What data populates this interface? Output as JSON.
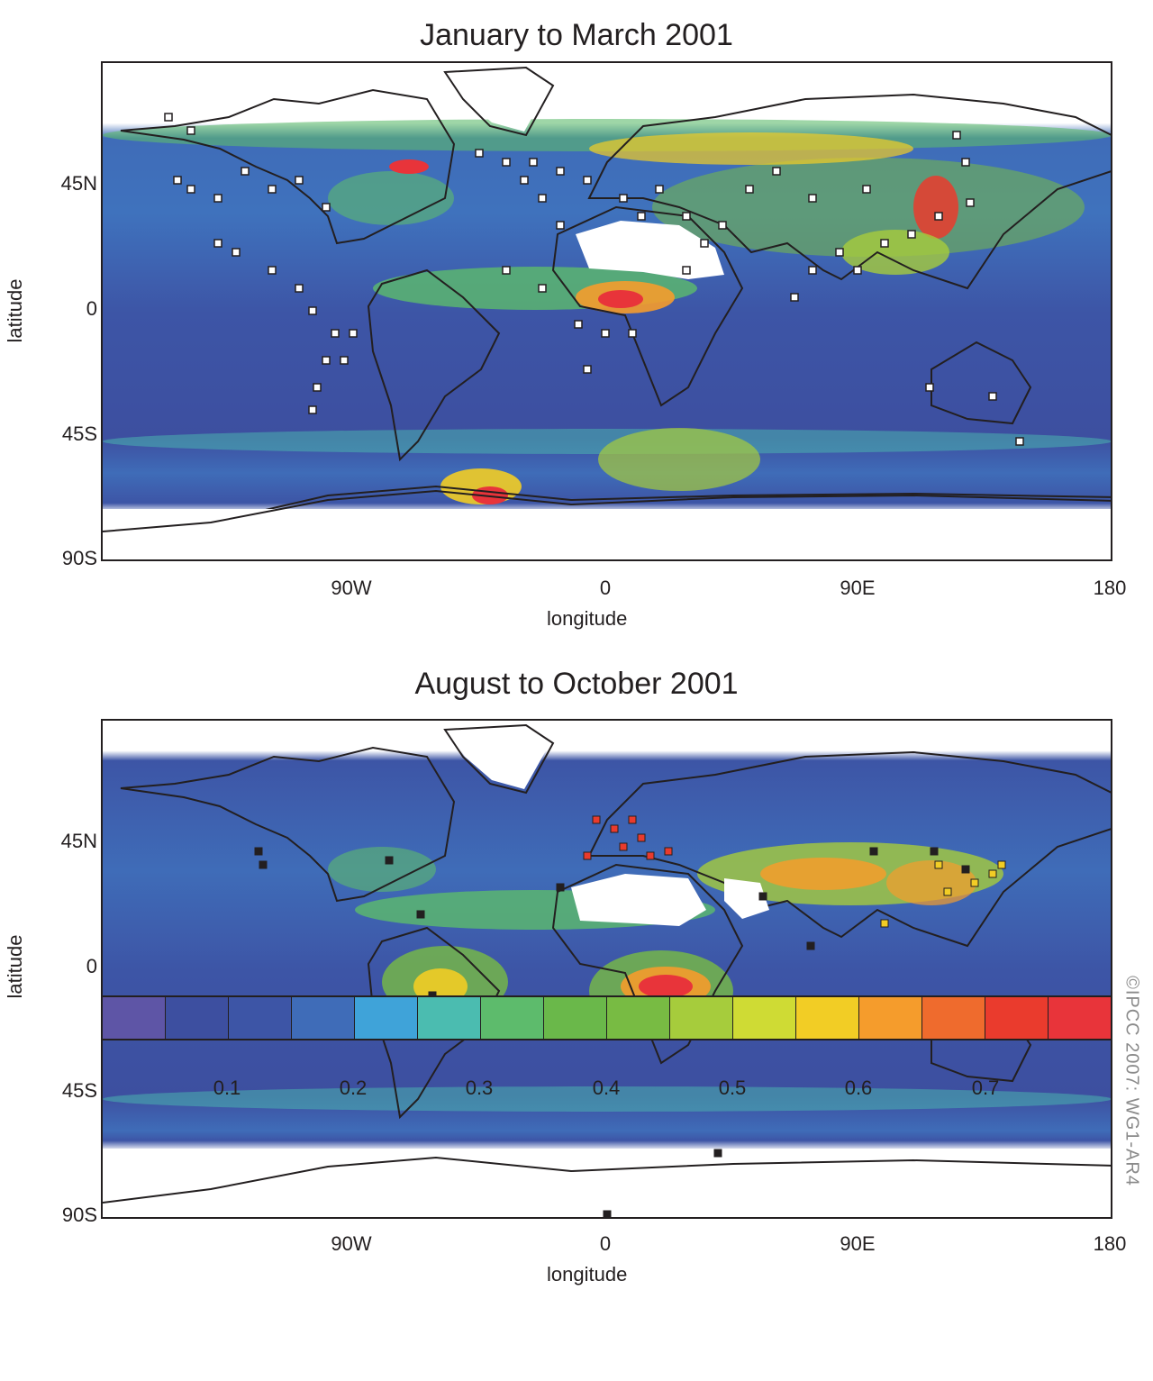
{
  "panels": [
    {
      "title": "January to March 2001",
      "ylabel": "latitude",
      "xlabel": "longitude",
      "lat_ticks": [
        "45N",
        "0",
        "45S",
        "90S"
      ],
      "lon_ticks": [
        "90W",
        "0",
        "90E",
        "180"
      ],
      "station_marker": "open-white-square"
    },
    {
      "title": "August to October 2001",
      "ylabel": "latitude",
      "xlabel": "longitude",
      "lat_ticks": [
        "45N",
        "0",
        "45S",
        "90S"
      ],
      "lon_ticks": [
        "90W",
        "0",
        "90E",
        "180"
      ],
      "station_marker": "filled-black-red-yellow-square"
    }
  ],
  "colorbar": {
    "tick_labels": [
      "0.1",
      "0.2",
      "0.3",
      "0.4",
      "0.5",
      "0.6",
      "0.7"
    ],
    "colors": [
      "#5e55a6",
      "#3d4fa0",
      "#3d55a6",
      "#3f6cb8",
      "#3fa3d9",
      "#4bbcb0",
      "#5dbb6c",
      "#6ab84a",
      "#78bb43",
      "#a6cc3c",
      "#cfdb34",
      "#f2cd25",
      "#f59c2c",
      "#ef6b2d",
      "#ea3b2d",
      "#e8343a"
    ]
  },
  "credit": "©IPCC  2007: WG1-AR4"
}
